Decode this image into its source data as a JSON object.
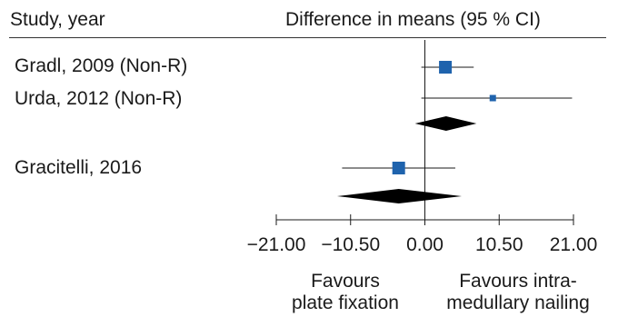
{
  "header": {
    "study_col": "Study, year",
    "effect_col": "Difference in means (95 % CI)"
  },
  "colors": {
    "marker": "#1f63ad",
    "diamond": "#000000",
    "line": "#1a1a1a"
  },
  "chart_data": {
    "type": "forest",
    "title": "",
    "xlabel": "",
    "xlim": [
      -21.0,
      21.0
    ],
    "xticks": [
      -21.0,
      -10.5,
      0.0,
      10.5,
      21.0
    ],
    "xtick_labels": [
      "−21.00",
      "−10.50",
      "0.00",
      "10.50",
      "21.00"
    ],
    "studies": [
      {
        "label": "Gradl, 2009 (Non-R)",
        "estimate": 2.9,
        "ci_low": -0.5,
        "ci_high": 6.9,
        "weight": "large"
      },
      {
        "label": "Urda, 2012 (Non-R)",
        "estimate": 9.6,
        "ci_low": -0.5,
        "ci_high": 20.8,
        "weight": "small"
      }
    ],
    "pooled_1": {
      "estimate": 3.0,
      "ci_low": -1.4,
      "ci_high": 7.3
    },
    "studies_2": [
      {
        "label": "Gracitelli, 2016",
        "estimate": -3.7,
        "ci_low": -11.7,
        "ci_high": 4.3,
        "weight": "large"
      }
    ],
    "pooled_2": {
      "estimate": -3.7,
      "ci_low": -12.4,
      "ci_high": 5.2
    },
    "favours_left": [
      "Favours",
      "plate fixation"
    ],
    "favours_right": [
      "Favours intra-",
      "medullary nailing"
    ]
  }
}
